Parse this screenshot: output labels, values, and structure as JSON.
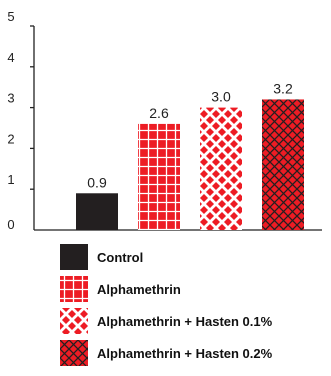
{
  "chart_data": {
    "type": "bar",
    "categories": [
      "Control",
      "Alphamethrin",
      "Alphamethrin + Hasten 0.1%",
      "Alphamethrin + Hasten 0.2%"
    ],
    "values": [
      0.9,
      2.6,
      3.0,
      3.2
    ],
    "data_labels": [
      "0.9",
      "2.6",
      "3.0",
      "3.2"
    ],
    "ylim": [
      0,
      5
    ],
    "yticks": [
      0,
      1,
      2,
      3,
      4,
      5
    ],
    "ytick_labels": [
      "0",
      "1",
      "2",
      "3",
      "4",
      "5"
    ],
    "title": "",
    "xlabel": "",
    "ylabel": "",
    "legend_position": "bottom",
    "grid": false,
    "series_styles": [
      {
        "color": "#231f20",
        "pattern": "solid"
      },
      {
        "color": "#ed1c24",
        "pattern": "crosshatch"
      },
      {
        "color": "#ed1c24",
        "pattern": "diamond-lattice"
      },
      {
        "color": "#ed1c24",
        "pattern": "dense-diamond-lattice"
      }
    ]
  },
  "legend": {
    "items": [
      "Control",
      "Alphamethrin",
      "Alphamethrin + Hasten 0.1%",
      "Alphamethrin + Hasten 0.2%"
    ]
  }
}
